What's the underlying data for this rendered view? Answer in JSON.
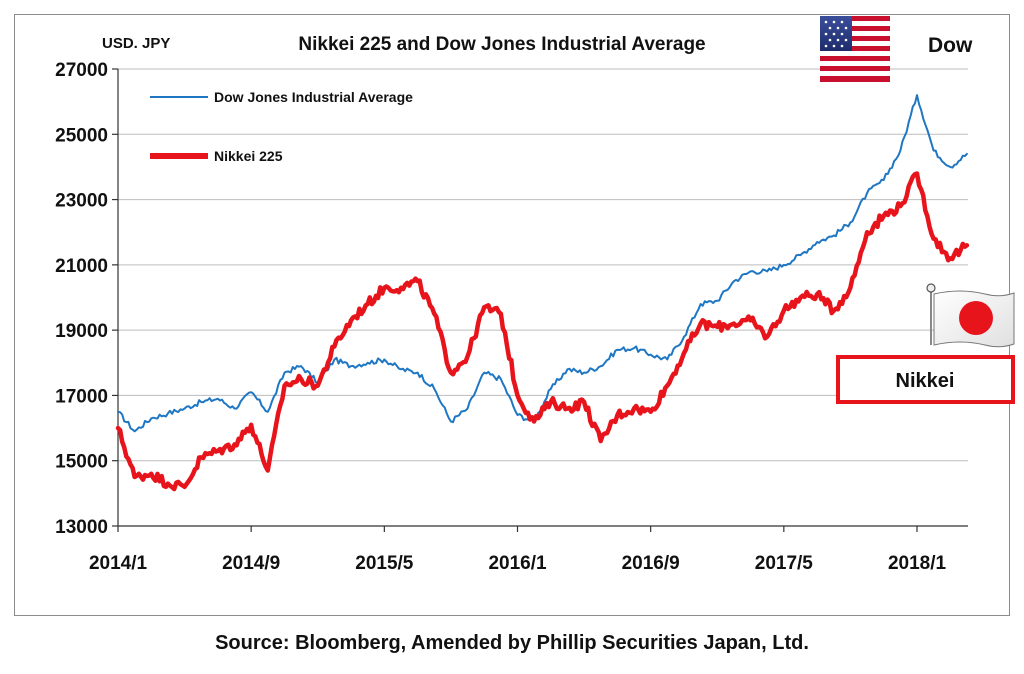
{
  "chart_data": {
    "type": "line",
    "title": "Nikkei 225 and Dow Jones Industrial Average",
    "unit_label": "USD. JPY",
    "ylim": [
      13000,
      27000
    ],
    "yticks": [
      "13000",
      "15000",
      "17000",
      "19000",
      "21000",
      "23000",
      "25000",
      "27000"
    ],
    "xlim": [
      "2014-01",
      "2018-04"
    ],
    "xticks": [
      "2014/1",
      "2014/9",
      "2015/5",
      "2016/1",
      "2016/9",
      "2017/5",
      "2018/1"
    ],
    "grid": "horizontal",
    "legend_position": "top-left",
    "series": [
      {
        "name": "Dow Jones Industrial Average",
        "color": "#1f77c4",
        "points": [
          [
            "2014-01",
            16500
          ],
          [
            "2014-02",
            15900
          ],
          [
            "2014-03",
            16300
          ],
          [
            "2014-04",
            16450
          ],
          [
            "2014-05",
            16600
          ],
          [
            "2014-06",
            16800
          ],
          [
            "2014-07",
            16900
          ],
          [
            "2014-08",
            16600
          ],
          [
            "2014-09",
            17100
          ],
          [
            "2014-10",
            16500
          ],
          [
            "2014-11",
            17700
          ],
          [
            "2014-12",
            17900
          ],
          [
            "2015-01",
            17400
          ],
          [
            "2015-02",
            18100
          ],
          [
            "2015-03",
            17900
          ],
          [
            "2015-04",
            18000
          ],
          [
            "2015-05",
            18100
          ],
          [
            "2015-06",
            17800
          ],
          [
            "2015-07",
            17700
          ],
          [
            "2015-08",
            17200
          ],
          [
            "2015-09",
            16200
          ],
          [
            "2015-10",
            16600
          ],
          [
            "2015-11",
            17700
          ],
          [
            "2015-12",
            17500
          ],
          [
            "2016-01",
            16400
          ],
          [
            "2016-02",
            16200
          ],
          [
            "2016-03",
            17200
          ],
          [
            "2016-04",
            17800
          ],
          [
            "2016-05",
            17700
          ],
          [
            "2016-06",
            17900
          ],
          [
            "2016-07",
            18400
          ],
          [
            "2016-08",
            18450
          ],
          [
            "2016-09",
            18250
          ],
          [
            "2016-10",
            18100
          ],
          [
            "2016-11",
            18800
          ],
          [
            "2016-12",
            19800
          ],
          [
            "2017-01",
            19900
          ],
          [
            "2017-02",
            20500
          ],
          [
            "2017-03",
            20800
          ],
          [
            "2017-04",
            20800
          ],
          [
            "2017-05",
            21000
          ],
          [
            "2017-06",
            21300
          ],
          [
            "2017-07",
            21700
          ],
          [
            "2017-08",
            21900
          ],
          [
            "2017-09",
            22300
          ],
          [
            "2017-10",
            23200
          ],
          [
            "2017-11",
            23600
          ],
          [
            "2017-12",
            24500
          ],
          [
            "2018-01",
            26200
          ],
          [
            "2018-02",
            24500
          ],
          [
            "2018-03",
            24000
          ],
          [
            "2018-04",
            24400
          ]
        ]
      },
      {
        "name": "Nikkei 225",
        "color": "#e8141c",
        "points": [
          [
            "2014-01",
            16000
          ],
          [
            "2014-02",
            14500
          ],
          [
            "2014-03",
            14600
          ],
          [
            "2014-04",
            14300
          ],
          [
            "2014-05",
            14200
          ],
          [
            "2014-06",
            15100
          ],
          [
            "2014-07",
            15300
          ],
          [
            "2014-08",
            15500
          ],
          [
            "2014-09",
            16100
          ],
          [
            "2014-10",
            14700
          ],
          [
            "2014-11",
            17300
          ],
          [
            "2014-12",
            17500
          ],
          [
            "2015-01",
            17300
          ],
          [
            "2015-02",
            18500
          ],
          [
            "2015-03",
            19300
          ],
          [
            "2015-04",
            19800
          ],
          [
            "2015-05",
            20300
          ],
          [
            "2015-06",
            20300
          ],
          [
            "2015-07",
            20500
          ],
          [
            "2015-08",
            19500
          ],
          [
            "2015-09",
            17700
          ],
          [
            "2015-10",
            18200
          ],
          [
            "2015-11",
            19700
          ],
          [
            "2015-12",
            19500
          ],
          [
            "2016-01",
            17000
          ],
          [
            "2016-02",
            16200
          ],
          [
            "2016-03",
            16800
          ],
          [
            "2016-04",
            16600
          ],
          [
            "2016-05",
            16800
          ],
          [
            "2016-06",
            15600
          ],
          [
            "2016-07",
            16400
          ],
          [
            "2016-08",
            16600
          ],
          [
            "2016-09",
            16500
          ],
          [
            "2016-10",
            17300
          ],
          [
            "2016-11",
            18300
          ],
          [
            "2016-12",
            19200
          ],
          [
            "2017-01",
            19100
          ],
          [
            "2017-02",
            19200
          ],
          [
            "2017-03",
            19300
          ],
          [
            "2017-04",
            18800
          ],
          [
            "2017-05",
            19600
          ],
          [
            "2017-06",
            20000
          ],
          [
            "2017-07",
            20100
          ],
          [
            "2017-08",
            19600
          ],
          [
            "2017-09",
            20300
          ],
          [
            "2017-10",
            22000
          ],
          [
            "2017-11",
            22500
          ],
          [
            "2017-12",
            22800
          ],
          [
            "2018-01",
            23800
          ],
          [
            "2018-02",
            21800
          ],
          [
            "2018-03",
            21200
          ],
          [
            "2018-04",
            21600
          ]
        ]
      }
    ],
    "annotations": {
      "dow_label": "Dow",
      "nikkei_label": "Nikkei"
    }
  },
  "source": "Source: Bloomberg, Amended by Phillip Securities Japan, Ltd."
}
